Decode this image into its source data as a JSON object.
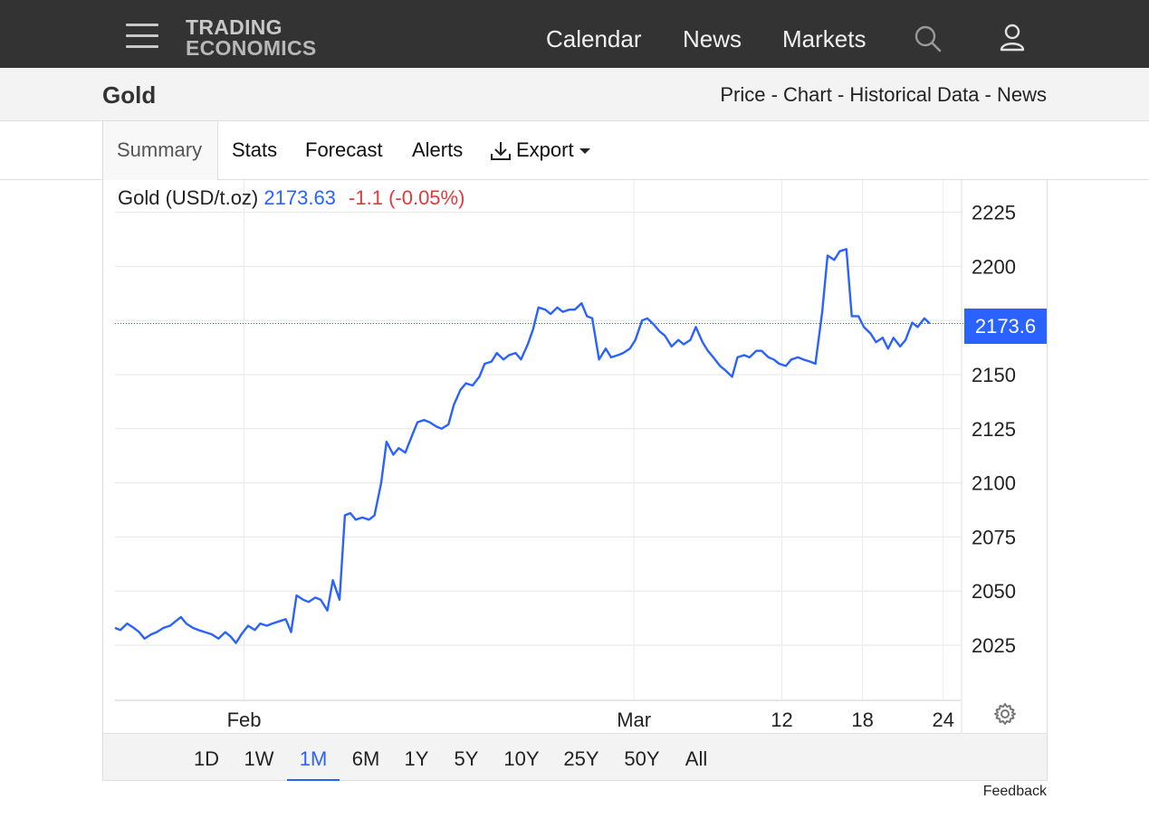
{
  "header": {
    "logo_line1": "TRADING",
    "logo_line2": "ECONOMICS",
    "nav": [
      "Calendar",
      "News",
      "Markets"
    ]
  },
  "title_bar": {
    "title": "Gold",
    "links": "Price - Chart - Historical Data - News"
  },
  "tabs": [
    {
      "label": "Summary",
      "active": true
    },
    {
      "label": "Stats"
    },
    {
      "label": "Forecast"
    },
    {
      "label": "Alerts"
    },
    {
      "label": "Export"
    }
  ],
  "quote": {
    "name": "Gold (USD/t.oz)",
    "price": "2173.63",
    "change": "-1.1 (-0.05%)",
    "last_badge": "2173.6"
  },
  "range_buttons": [
    {
      "label": "1D"
    },
    {
      "label": "1W"
    },
    {
      "label": "1M",
      "active": true
    },
    {
      "label": "6M"
    },
    {
      "label": "1Y"
    },
    {
      "label": "5Y"
    },
    {
      "label": "10Y"
    },
    {
      "label": "25Y"
    },
    {
      "label": "50Y"
    },
    {
      "label": "All"
    }
  ],
  "feedback": "Feedback",
  "colors": {
    "line": "#2962ff",
    "up": "#2962ff",
    "down": "#e0393e",
    "topbar": "#333333"
  },
  "chart_data": {
    "type": "line",
    "title": "",
    "xlabel": "",
    "ylabel": "",
    "ylim": [
      2000,
      2235
    ],
    "y_ticks": [
      2025,
      2050,
      2075,
      2100,
      2125,
      2150,
      2175,
      2200,
      2225
    ],
    "x_ticks": [
      {
        "label": "Feb",
        "x": 1.5
      },
      {
        "label": "Mar",
        "x": 30.5
      },
      {
        "label": "12",
        "x": 41.5
      },
      {
        "label": "18",
        "x": 47.5
      },
      {
        "label": "24",
        "x": 53.5
      }
    ],
    "xlim": [
      -8.1,
      54.8
    ],
    "last_value": 2173.63,
    "grid": true,
    "series": [
      {
        "points": [
          [
            -8.1,
            2033
          ],
          [
            -7.7,
            2032
          ],
          [
            -7.2,
            2035
          ],
          [
            -6.7,
            2033
          ],
          [
            -6.3,
            2031
          ],
          [
            -5.9,
            2028
          ],
          [
            -5.4,
            2030
          ],
          [
            -5.0,
            2031
          ],
          [
            -4.5,
            2033
          ],
          [
            -4.0,
            2034
          ],
          [
            -3.6,
            2036
          ],
          [
            -3.2,
            2038
          ],
          [
            -2.8,
            2035
          ],
          [
            -2.3,
            2033
          ],
          [
            -1.9,
            2032
          ],
          [
            -1.4,
            2031
          ],
          [
            -0.9,
            2030
          ],
          [
            -0.4,
            2028
          ],
          [
            0.1,
            2031
          ],
          [
            0.5,
            2029
          ],
          [
            0.9,
            2026
          ],
          [
            1.3,
            2030
          ],
          [
            1.8,
            2034
          ],
          [
            2.3,
            2032
          ],
          [
            2.7,
            2035
          ],
          [
            3.2,
            2034
          ],
          [
            3.6,
            2035
          ],
          [
            4.1,
            2036
          ],
          [
            4.6,
            2037
          ],
          [
            5.0,
            2031
          ],
          [
            5.4,
            2048
          ],
          [
            5.9,
            2046
          ],
          [
            6.3,
            2045
          ],
          [
            6.8,
            2047
          ],
          [
            7.2,
            2046
          ],
          [
            7.7,
            2041
          ],
          [
            8.1,
            2055
          ],
          [
            8.6,
            2046
          ],
          [
            9.0,
            2085
          ],
          [
            9.4,
            2086
          ],
          [
            9.8,
            2083
          ],
          [
            10.3,
            2084
          ],
          [
            10.8,
            2083
          ],
          [
            11.2,
            2085
          ],
          [
            11.7,
            2100
          ],
          [
            12.1,
            2119
          ],
          [
            12.6,
            2113
          ],
          [
            13.0,
            2116
          ],
          [
            13.5,
            2114
          ],
          [
            14.0,
            2122
          ],
          [
            14.4,
            2128
          ],
          [
            14.9,
            2129
          ],
          [
            15.3,
            2128
          ],
          [
            15.8,
            2126
          ],
          [
            16.2,
            2125
          ],
          [
            16.7,
            2127
          ],
          [
            17.1,
            2136
          ],
          [
            17.6,
            2143
          ],
          [
            18.0,
            2146
          ],
          [
            18.5,
            2145
          ],
          [
            19.0,
            2149
          ],
          [
            19.4,
            2155
          ],
          [
            19.9,
            2156
          ],
          [
            20.3,
            2160
          ],
          [
            20.8,
            2157
          ],
          [
            21.2,
            2159
          ],
          [
            21.7,
            2160
          ],
          [
            22.1,
            2157
          ],
          [
            22.6,
            2164
          ],
          [
            23.0,
            2171
          ],
          [
            23.4,
            2181
          ],
          [
            23.9,
            2180
          ],
          [
            24.3,
            2178
          ],
          [
            24.8,
            2181
          ],
          [
            25.2,
            2179
          ],
          [
            25.7,
            2180
          ],
          [
            26.1,
            2180
          ],
          [
            26.6,
            2183
          ],
          [
            27.0,
            2177
          ],
          [
            27.4,
            2176
          ],
          [
            27.9,
            2157
          ],
          [
            28.4,
            2162
          ],
          [
            28.8,
            2158
          ],
          [
            29.3,
            2159
          ],
          [
            29.7,
            2160
          ],
          [
            30.2,
            2162
          ],
          [
            30.6,
            2166
          ],
          [
            31.1,
            2175
          ],
          [
            31.5,
            2176
          ],
          [
            32.0,
            2173
          ],
          [
            32.4,
            2170
          ],
          [
            32.8,
            2168
          ],
          [
            33.3,
            2163
          ],
          [
            33.8,
            2166
          ],
          [
            34.2,
            2164
          ],
          [
            34.7,
            2166
          ],
          [
            35.1,
            2172
          ],
          [
            35.6,
            2165
          ],
          [
            36.0,
            2161
          ],
          [
            36.4,
            2158
          ],
          [
            36.9,
            2154
          ],
          [
            37.3,
            2152
          ],
          [
            37.8,
            2149
          ],
          [
            38.2,
            2158
          ],
          [
            38.7,
            2159
          ],
          [
            39.1,
            2158
          ],
          [
            39.6,
            2161
          ],
          [
            40.0,
            2161
          ],
          [
            40.5,
            2158
          ],
          [
            40.9,
            2157
          ],
          [
            41.3,
            2155
          ],
          [
            41.8,
            2154
          ],
          [
            42.2,
            2157
          ],
          [
            42.7,
            2158
          ],
          [
            43.1,
            2157
          ],
          [
            43.6,
            2156
          ],
          [
            44.0,
            2155
          ],
          [
            44.5,
            2179
          ],
          [
            44.9,
            2205
          ],
          [
            45.4,
            2203
          ],
          [
            45.8,
            2207
          ],
          [
            46.3,
            2208
          ],
          [
            46.7,
            2177
          ],
          [
            47.2,
            2177
          ],
          [
            47.6,
            2172
          ],
          [
            48.1,
            2169
          ],
          [
            48.5,
            2165
          ],
          [
            49.0,
            2167
          ],
          [
            49.4,
            2162
          ],
          [
            49.8,
            2167
          ],
          [
            50.3,
            2163
          ],
          [
            50.7,
            2166
          ],
          [
            51.2,
            2174
          ],
          [
            51.6,
            2172
          ],
          [
            52.1,
            2176
          ],
          [
            52.5,
            2173.63
          ]
        ]
      }
    ]
  }
}
